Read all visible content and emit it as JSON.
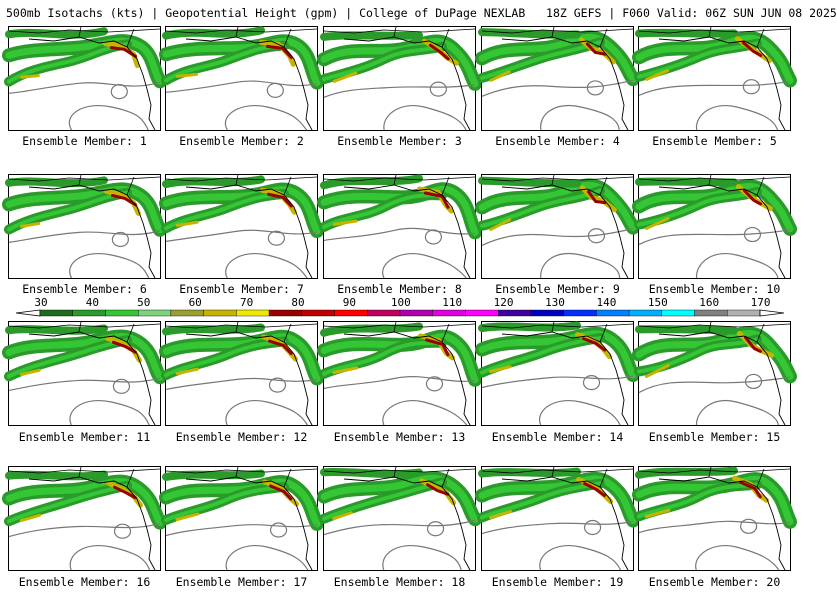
{
  "header": {
    "text": "500mb Isotachs (kts) | Geopotential Height (gpm) | College of DuPage NEXLAB   18Z GEFS | F060 Valid: 06Z SUN JUN 08 2025"
  },
  "colorbar": {
    "labels": [
      "30",
      "40",
      "50",
      "60",
      "70",
      "80",
      "90",
      "100",
      "110",
      "120",
      "130",
      "140",
      "150",
      "160",
      "170"
    ],
    "colors": [
      "#1f6b1f",
      "#2a9a2a",
      "#35c635",
      "#7fd07f",
      "#9aa030",
      "#c8b400",
      "#f0e800",
      "#9a0000",
      "#c00000",
      "#ff0000",
      "#c00060",
      "#b000b0",
      "#e000e0",
      "#ff00ff",
      "#4000a0",
      "#0000c0",
      "#0030ff",
      "#0080ff",
      "#00b0ff",
      "#00ffff",
      "#808080",
      "#b0b0b0"
    ]
  },
  "panels": [
    {
      "caption": "Ensemble Member: 1"
    },
    {
      "caption": "Ensemble Member: 2"
    },
    {
      "caption": "Ensemble Member: 3"
    },
    {
      "caption": "Ensemble Member: 4"
    },
    {
      "caption": "Ensemble Member: 5"
    },
    {
      "caption": "Ensemble Member: 6"
    },
    {
      "caption": "Ensemble Member: 7"
    },
    {
      "caption": "Ensemble Member: 8"
    },
    {
      "caption": "Ensemble Member: 9"
    },
    {
      "caption": "Ensemble Member: 10"
    },
    {
      "caption": "Ensemble Member: 11"
    },
    {
      "caption": "Ensemble Member: 12"
    },
    {
      "caption": "Ensemble Member: 13"
    },
    {
      "caption": "Ensemble Member: 14"
    },
    {
      "caption": "Ensemble Member: 15"
    },
    {
      "caption": "Ensemble Member: 16"
    },
    {
      "caption": "Ensemble Member: 17"
    },
    {
      "caption": "Ensemble Member: 18"
    },
    {
      "caption": "Ensemble Member: 19"
    },
    {
      "caption": "Ensemble Member: 20"
    }
  ]
}
